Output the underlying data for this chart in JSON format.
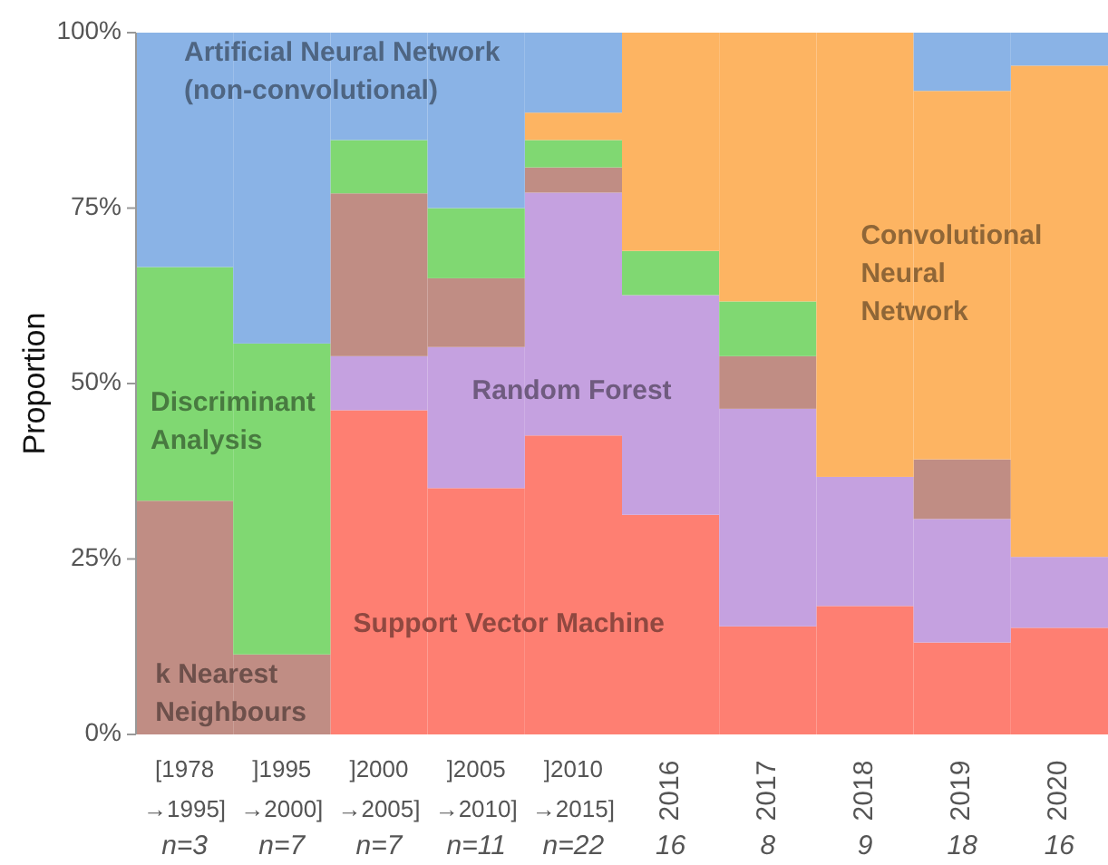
{
  "chart_data": {
    "type": "bar",
    "stacked": true,
    "ylabel": "Proportion",
    "categories": [
      "[1978\n→1995]",
      "]1995\n→2000]",
      "]2000\n→2005]",
      "]2005\n→2010]",
      "]2010\n→2015]",
      "2016",
      "2017",
      "2018",
      "2019",
      "2020"
    ],
    "annotations": [
      "n=3",
      "n=7",
      "n=7",
      "n=11",
      "n=22",
      "16",
      "8",
      "9",
      "18",
      "16"
    ],
    "series": [
      {
        "name": "Support Vector Machine",
        "color": "#fe7f72",
        "values": [
          0,
          0,
          46.2,
          35.1,
          42.6,
          31.3,
          15.4,
          18.3,
          13.1,
          15.2
        ]
      },
      {
        "name": "Random Forest",
        "color": "#c5a1e0",
        "values": [
          0,
          0,
          7.7,
          20.1,
          34.6,
          31.3,
          31,
          18.4,
          17.6,
          10.1
        ]
      },
      {
        "name": "k Nearest\nNeighbours",
        "color": "#c08d84",
        "values": [
          33.3,
          11.4,
          23.2,
          9.8,
          3.6,
          0,
          7.5,
          0,
          8.5,
          0
        ]
      },
      {
        "name": "Discriminant\nAnalysis",
        "color": "#80d872",
        "values": [
          33.3,
          44.3,
          7.6,
          10,
          3.9,
          6.3,
          7.8,
          0,
          0,
          0
        ]
      },
      {
        "name": "Convolutional\nNeural\nNetwork",
        "color": "#fdb462",
        "values": [
          0,
          0,
          0,
          0,
          3.9,
          31.1,
          38.3,
          63.3,
          52.5,
          70
        ]
      },
      {
        "name": "Artificial Neural Network\n(non-convolutional)",
        "color": "#8ab3e6",
        "values": [
          33.4,
          44.3,
          15.3,
          25,
          11.4,
          0,
          0,
          0,
          8.3,
          4.7
        ]
      }
    ],
    "ylim": [
      0,
      100
    ],
    "yticks": [
      {
        "value": 0,
        "label": "0%"
      },
      {
        "value": 25,
        "label": "25%"
      },
      {
        "value": 50,
        "label": "50%"
      },
      {
        "value": 75,
        "label": "75%"
      },
      {
        "value": 100,
        "label": "100%"
      }
    ],
    "grid": false
  }
}
